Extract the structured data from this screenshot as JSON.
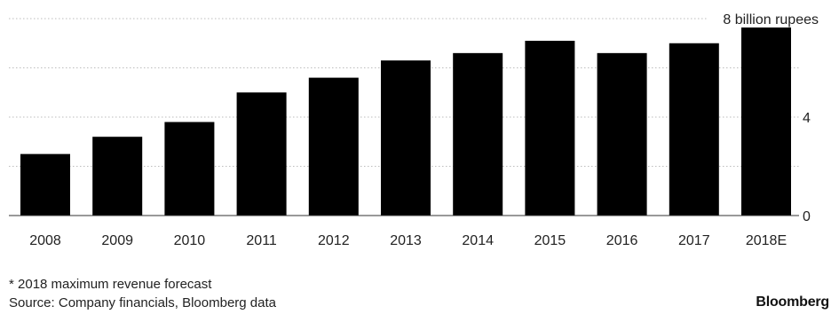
{
  "chart_data": {
    "type": "bar",
    "categories": [
      "2008",
      "2009",
      "2010",
      "2011",
      "2012",
      "2013",
      "2014",
      "2015",
      "2016",
      "2017",
      "2018E"
    ],
    "values": [
      2.5,
      3.2,
      3.8,
      5.0,
      5.6,
      6.3,
      6.6,
      7.1,
      6.6,
      7.0,
      7.7
    ],
    "ylim": [
      0,
      8
    ],
    "yticks": [
      0,
      4,
      8
    ],
    "ytick_labels": [
      "0",
      "4",
      "8 billion rupees"
    ],
    "grid": "horizontal-dotted",
    "axis_position": "right",
    "bar_color": "#000000",
    "grid_color": "#bdbdbd",
    "title": "",
    "xlabel": "",
    "ylabel": ""
  },
  "footnote": "* 2018 maximum revenue forecast",
  "source": "Source: Company financials, Bloomberg data",
  "brand": "Bloomberg"
}
